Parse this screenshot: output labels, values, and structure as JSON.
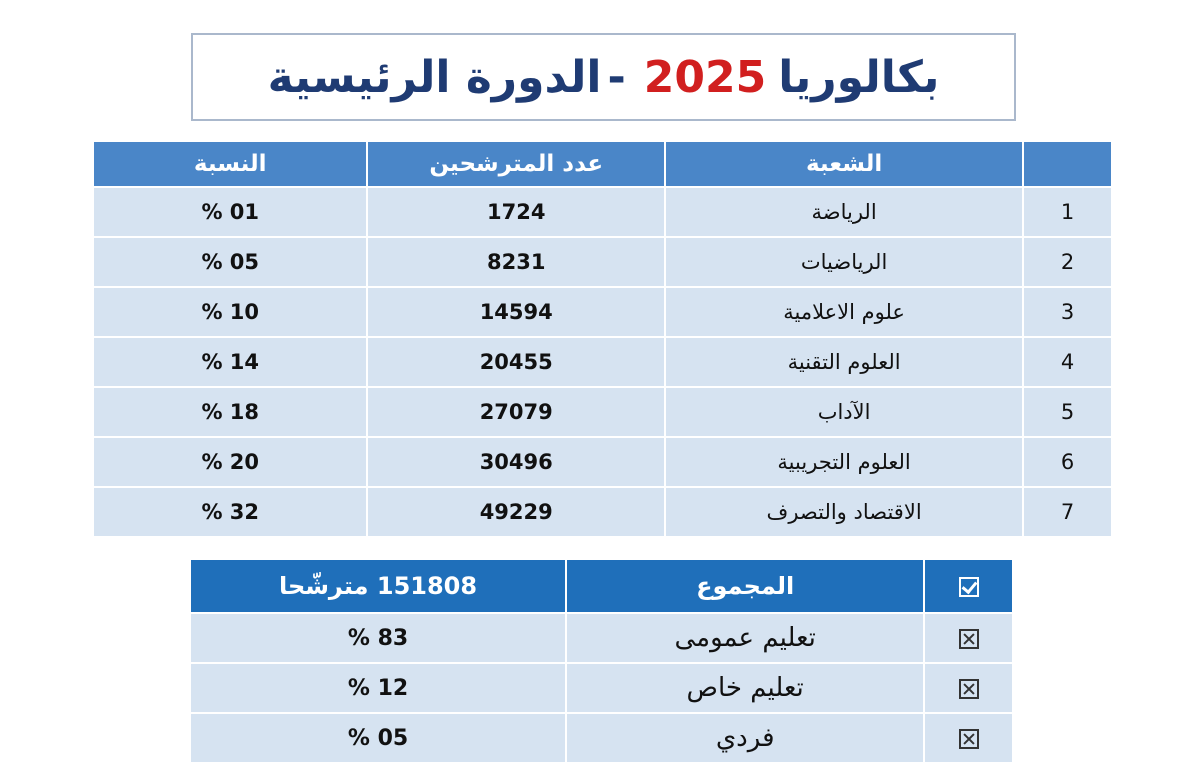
{
  "title": {
    "prefix": "بكالوريا",
    "year": "2025",
    "dash": "-",
    "suffix": "الدورة الرئيسية"
  },
  "branches_table": {
    "headers": {
      "index": "",
      "branch": "الشعبة",
      "candidates": "عدد المترشحين",
      "ratio": "النسبة"
    },
    "rows": [
      {
        "index": "1",
        "branch": "الرياضة",
        "candidates": "1724",
        "ratio": "01 %"
      },
      {
        "index": "2",
        "branch": "الرياضيات",
        "candidates": "8231",
        "ratio": "05 %"
      },
      {
        "index": "3",
        "branch": "علوم الاعلامية",
        "candidates": "14594",
        "ratio": "10 %"
      },
      {
        "index": "4",
        "branch": "العلوم التقنية",
        "candidates": "20455",
        "ratio": "14 %"
      },
      {
        "index": "5",
        "branch": "الآداب",
        "candidates": "27079",
        "ratio": "18 %"
      },
      {
        "index": "6",
        "branch": "العلوم التجريبية",
        "candidates": "30496",
        "ratio": "20 %"
      },
      {
        "index": "7",
        "branch": "الاقتصاد والتصرف",
        "candidates": "49229",
        "ratio": "32 %"
      }
    ]
  },
  "summary_table": {
    "header": {
      "icon": "checkbox-checked-icon",
      "label": "المجموع",
      "total": "151808 مترشّحا"
    },
    "rows": [
      {
        "icon": "checkbox-x-icon",
        "label": "تعليم عمومى",
        "ratio": "83 %"
      },
      {
        "icon": "checkbox-x-icon",
        "label": "تعليم خاص",
        "ratio": "12 %"
      },
      {
        "icon": "checkbox-x-icon",
        "label": "فردي",
        "ratio": "05 %"
      }
    ]
  },
  "colors": {
    "title_text": "#1f3b73",
    "year_text": "#d11f1f",
    "header_bg": "#4a86c8",
    "summary_header_bg": "#1f6fba",
    "row_bg": "#d6e3f1"
  }
}
